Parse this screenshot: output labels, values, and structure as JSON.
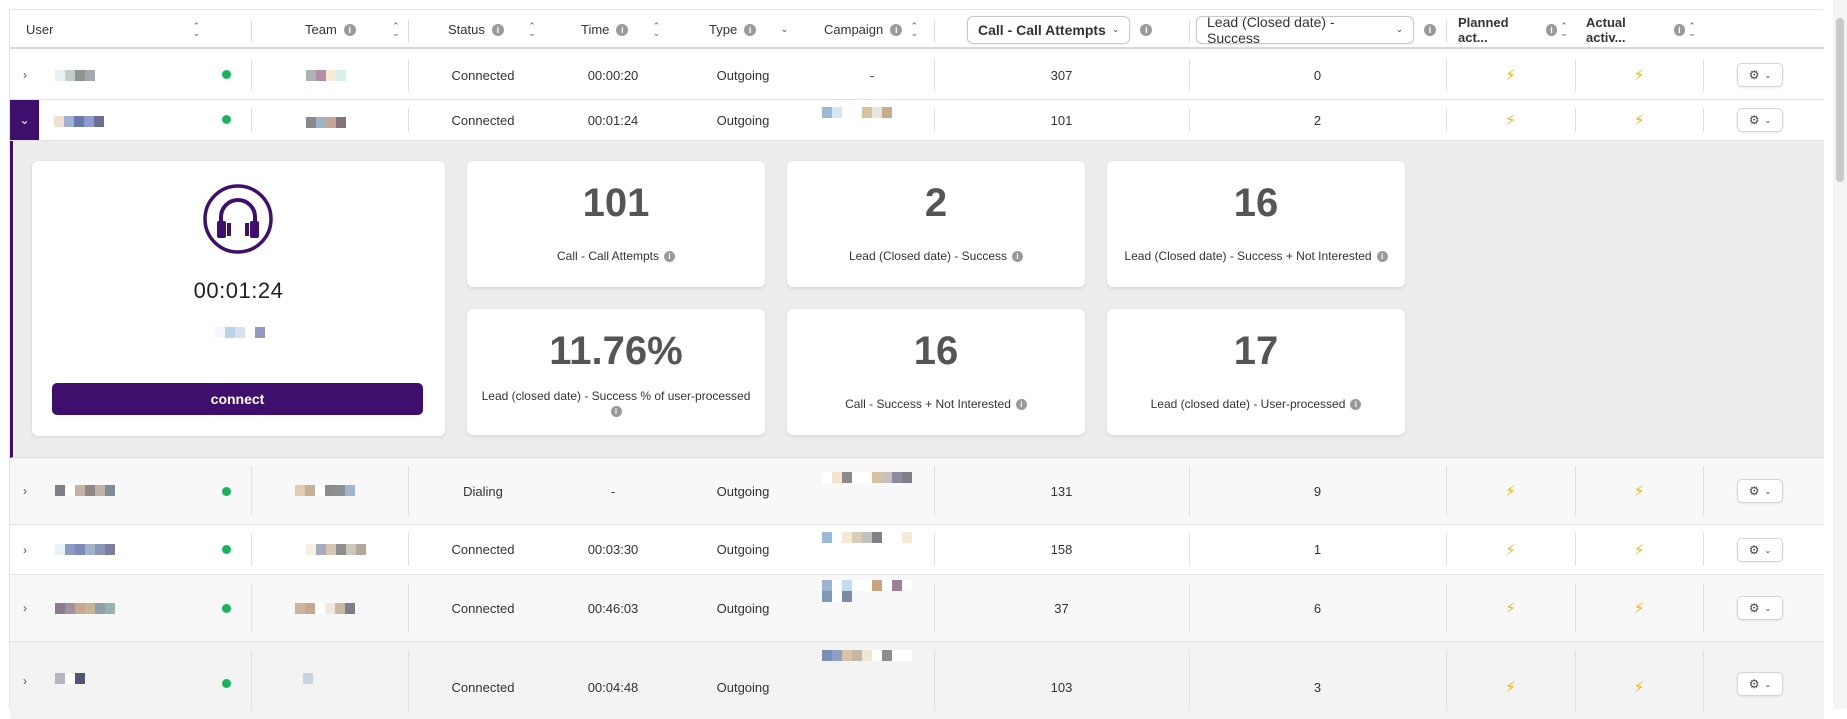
{
  "colors": {
    "accent": "#3f0f6e",
    "online": "#16b55c",
    "bolt": "#f2b705"
  },
  "header": {
    "user": "User",
    "team": "Team",
    "status": "Status",
    "time": "Time",
    "type": "Type",
    "campaign": "Campaign",
    "call_attempts": "Call - Call Attempts",
    "lead_success": "Lead (Closed date) - Success",
    "planned": "Planned act...",
    "actual": "Actual activ..."
  },
  "rows": [
    {
      "status": "Connected",
      "time": "00:00:20",
      "type": "Outgoing",
      "campaign": "-",
      "attempts": "307",
      "success": "0"
    },
    {
      "status": "Connected",
      "time": "00:01:24",
      "type": "Outgoing",
      "campaign": "",
      "attempts": "101",
      "success": "2"
    },
    {
      "status": "Dialing",
      "time": "-",
      "type": "Outgoing",
      "campaign": "",
      "attempts": "131",
      "success": "9"
    },
    {
      "status": "Connected",
      "time": "00:03:30",
      "type": "Outgoing",
      "campaign": "",
      "attempts": "158",
      "success": "1"
    },
    {
      "status": "Connected",
      "time": "00:46:03",
      "type": "Outgoing",
      "campaign": "",
      "attempts": "37",
      "success": "6"
    },
    {
      "status": "Connected",
      "time": "00:04:48",
      "type": "Outgoing",
      "campaign": "",
      "attempts": "103",
      "success": "3"
    }
  ],
  "detail": {
    "agent_time": "00:01:24",
    "connect_label": "connect",
    "stats": [
      {
        "value": "101",
        "label": "Call - Call Attempts"
      },
      {
        "value": "2",
        "label": "Lead (Closed date) - Success"
      },
      {
        "value": "16",
        "label": "Lead (Closed date) - Success + Not Interested"
      },
      {
        "value": "11.76%",
        "label": "Lead (closed date) - Success % of user-processed"
      },
      {
        "value": "16",
        "label": "Call - Success + Not Interested"
      },
      {
        "value": "17",
        "label": "Lead (closed date) - User-processed"
      }
    ]
  },
  "icons": {
    "info": "info-icon",
    "sort": "sort-icon",
    "chevron": "chevron-icon",
    "gear": "gear-icon",
    "bolt": "bolt-icon",
    "headset": "headset-icon",
    "status_dot": "status-dot"
  }
}
